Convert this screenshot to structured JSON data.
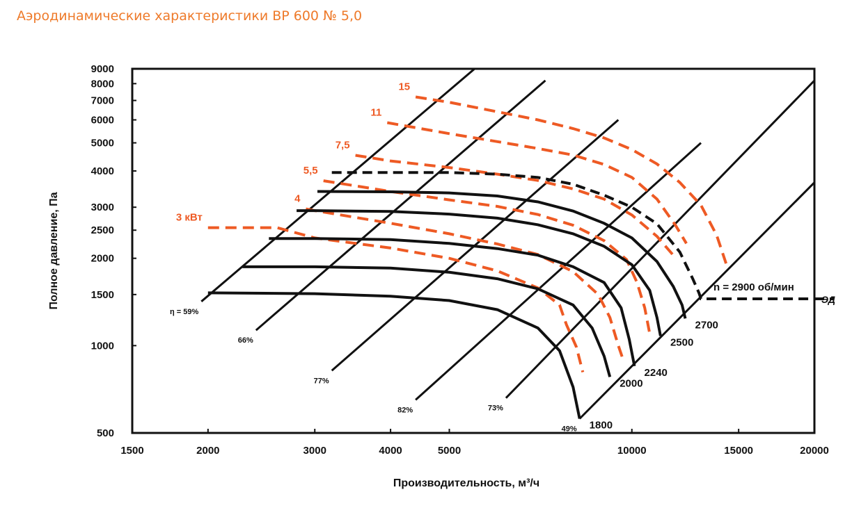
{
  "title": "Аэродинамические характеристики ВР 600 № 5,0",
  "colors": {
    "title": "#ee7a2a",
    "power": "#ee5a24",
    "speed": "#111111"
  },
  "chart_data": {
    "type": "line",
    "title": "Аэродинамические характеристики ВР 600 № 5,0",
    "xlabel": "Производительность, м³/ч",
    "ylabel": "Полное давление, Па",
    "xscale": "log",
    "yscale": "log",
    "xlim": [
      1500,
      20000
    ],
    "ylim": [
      500,
      9000
    ],
    "x_ticks": [
      {
        "value": 1500,
        "label": "1500"
      },
      {
        "value": 2000,
        "label": "2000"
      },
      {
        "value": 3000,
        "label": "3000"
      },
      {
        "value": 4000,
        "label": "4000"
      },
      {
        "value": 5000,
        "label": "5000"
      },
      {
        "value": 10000,
        "label": "10000"
      },
      {
        "value": 15000,
        "label": "15000"
      },
      {
        "value": 20000,
        "label": "20000"
      }
    ],
    "y_ticks": [
      {
        "value": 500,
        "label": "500"
      },
      {
        "value": 1000,
        "label": "1000"
      },
      {
        "value": 1500,
        "label": "1500"
      },
      {
        "value": 2000,
        "label": "2000"
      },
      {
        "value": 2500,
        "label": "2500"
      },
      {
        "value": 3000,
        "label": "3000"
      },
      {
        "value": 4000,
        "label": "4000"
      },
      {
        "value": 5000,
        "label": "5000"
      },
      {
        "value": 6000,
        "label": "6000"
      },
      {
        "value": 7000,
        "label": "7000"
      },
      {
        "value": 8000,
        "label": "8000"
      },
      {
        "value": 9000,
        "label": "9000"
      }
    ],
    "grid": false,
    "speed_curves": [
      {
        "label": "1800",
        "points": [
          [
            2000,
            1520
          ],
          [
            3000,
            1510
          ],
          [
            4000,
            1480
          ],
          [
            5000,
            1430
          ],
          [
            6000,
            1330
          ],
          [
            7000,
            1150
          ],
          [
            7600,
            960
          ],
          [
            8000,
            720
          ],
          [
            8200,
            560
          ]
        ]
      },
      {
        "label": "2000",
        "points": [
          [
            2280,
            1870
          ],
          [
            3000,
            1870
          ],
          [
            4000,
            1850
          ],
          [
            5000,
            1790
          ],
          [
            6000,
            1700
          ],
          [
            7000,
            1570
          ],
          [
            8000,
            1380
          ],
          [
            8600,
            1150
          ],
          [
            9000,
            920
          ],
          [
            9200,
            780
          ]
        ]
      },
      {
        "label": "2240",
        "points": [
          [
            2520,
            2340
          ],
          [
            3000,
            2340
          ],
          [
            4000,
            2320
          ],
          [
            5000,
            2250
          ],
          [
            6000,
            2160
          ],
          [
            7000,
            2050
          ],
          [
            8000,
            1870
          ],
          [
            9000,
            1650
          ],
          [
            9600,
            1350
          ],
          [
            9900,
            1050
          ],
          [
            10100,
            850
          ]
        ]
      },
      {
        "label": "2500",
        "points": [
          [
            2800,
            2920
          ],
          [
            3000,
            2920
          ],
          [
            4000,
            2900
          ],
          [
            5000,
            2840
          ],
          [
            6000,
            2750
          ],
          [
            7000,
            2610
          ],
          [
            8000,
            2430
          ],
          [
            9000,
            2200
          ],
          [
            10000,
            1900
          ],
          [
            10700,
            1550
          ],
          [
            11000,
            1250
          ],
          [
            11150,
            1080
          ]
        ]
      },
      {
        "label": "2700",
        "points": [
          [
            3030,
            3400
          ],
          [
            4000,
            3390
          ],
          [
            5000,
            3360
          ],
          [
            6000,
            3280
          ],
          [
            7000,
            3130
          ],
          [
            8000,
            2910
          ],
          [
            9000,
            2640
          ],
          [
            10000,
            2350
          ],
          [
            11000,
            1950
          ],
          [
            11700,
            1600
          ],
          [
            12100,
            1380
          ],
          [
            12250,
            1240
          ]
        ]
      }
    ],
    "power_curves": [
      {
        "label": "3 кВт",
        "points": [
          [
            2000,
            2550
          ],
          [
            2600,
            2550
          ],
          [
            3000,
            2350
          ],
          [
            4000,
            2170
          ],
          [
            5000,
            2000
          ],
          [
            6000,
            1810
          ],
          [
            7000,
            1580
          ],
          [
            7600,
            1380
          ],
          [
            7800,
            1180
          ],
          [
            8100,
            990
          ],
          [
            8300,
            810
          ]
        ]
      },
      {
        "label": "4",
        "points": [
          [
            2900,
            2960
          ],
          [
            3000,
            2920
          ],
          [
            4000,
            2640
          ],
          [
            5000,
            2430
          ],
          [
            6000,
            2240
          ],
          [
            7000,
            2060
          ],
          [
            8000,
            1800
          ],
          [
            8800,
            1500
          ],
          [
            9200,
            1250
          ],
          [
            9500,
            1000
          ],
          [
            9700,
            880
          ]
        ]
      },
      {
        "label": "5,5",
        "points": [
          [
            3100,
            3700
          ],
          [
            4000,
            3400
          ],
          [
            5000,
            3180
          ],
          [
            6000,
            3020
          ],
          [
            7000,
            2830
          ],
          [
            8000,
            2600
          ],
          [
            9000,
            2300
          ],
          [
            9800,
            1980
          ],
          [
            10200,
            1650
          ],
          [
            10500,
            1350
          ],
          [
            10700,
            1100
          ]
        ]
      },
      {
        "label": "7,5",
        "points": [
          [
            3500,
            4530
          ],
          [
            4000,
            4330
          ],
          [
            5000,
            4110
          ],
          [
            6000,
            3900
          ],
          [
            7000,
            3710
          ],
          [
            8000,
            3470
          ],
          [
            9000,
            3200
          ],
          [
            10000,
            2820
          ],
          [
            11000,
            2380
          ],
          [
            11700,
            2050
          ]
        ]
      },
      {
        "label": "11",
        "points": [
          [
            3950,
            5870
          ],
          [
            5000,
            5380
          ],
          [
            6000,
            5050
          ],
          [
            7000,
            4780
          ],
          [
            8000,
            4540
          ],
          [
            9000,
            4210
          ],
          [
            10000,
            3800
          ],
          [
            11000,
            3200
          ],
          [
            11800,
            2600
          ],
          [
            12300,
            2250
          ]
        ]
      },
      {
        "label": "15",
        "points": [
          [
            4400,
            7200
          ],
          [
            5000,
            6900
          ],
          [
            6000,
            6400
          ],
          [
            7000,
            6000
          ],
          [
            8000,
            5600
          ],
          [
            9000,
            5200
          ],
          [
            10000,
            4740
          ],
          [
            11000,
            4230
          ],
          [
            12000,
            3650
          ],
          [
            13000,
            3050
          ],
          [
            13800,
            2400
          ],
          [
            14300,
            1920
          ]
        ]
      }
    ],
    "motor_limit_curve": {
      "label": "ЭД",
      "points": [
        [
          3200,
          3950
        ],
        [
          4000,
          3950
        ],
        [
          5000,
          3950
        ],
        [
          6000,
          3900
        ],
        [
          7000,
          3800
        ],
        [
          8000,
          3600
        ],
        [
          9000,
          3300
        ],
        [
          10000,
          3000
        ],
        [
          11000,
          2630
        ],
        [
          12000,
          2100
        ],
        [
          12600,
          1700
        ],
        [
          12900,
          1520
        ],
        [
          13000,
          1450
        ],
        [
          20000,
          1450
        ]
      ]
    },
    "efficiency_lines": [
      {
        "label": "η = 59%",
        "points": [
          [
            1950,
            1420
          ],
          [
            6000,
            10500
          ]
        ]
      },
      {
        "label": "66%",
        "points": [
          [
            2400,
            1130
          ],
          [
            7200,
            8200
          ]
        ]
      },
      {
        "label": "77%",
        "points": [
          [
            3200,
            820
          ],
          [
            9500,
            6000
          ]
        ]
      },
      {
        "label": "82%",
        "points": [
          [
            4400,
            650
          ],
          [
            13000,
            5000
          ]
        ]
      },
      {
        "label": "73%",
        "points": [
          [
            6200,
            660
          ],
          [
            20000,
            8200
          ]
        ]
      },
      {
        "label": "49%",
        "points": [
          [
            8200,
            560
          ],
          [
            20000,
            3650
          ]
        ]
      }
    ],
    "annotations": [
      {
        "text": "n = 2900 об/мин"
      }
    ]
  }
}
